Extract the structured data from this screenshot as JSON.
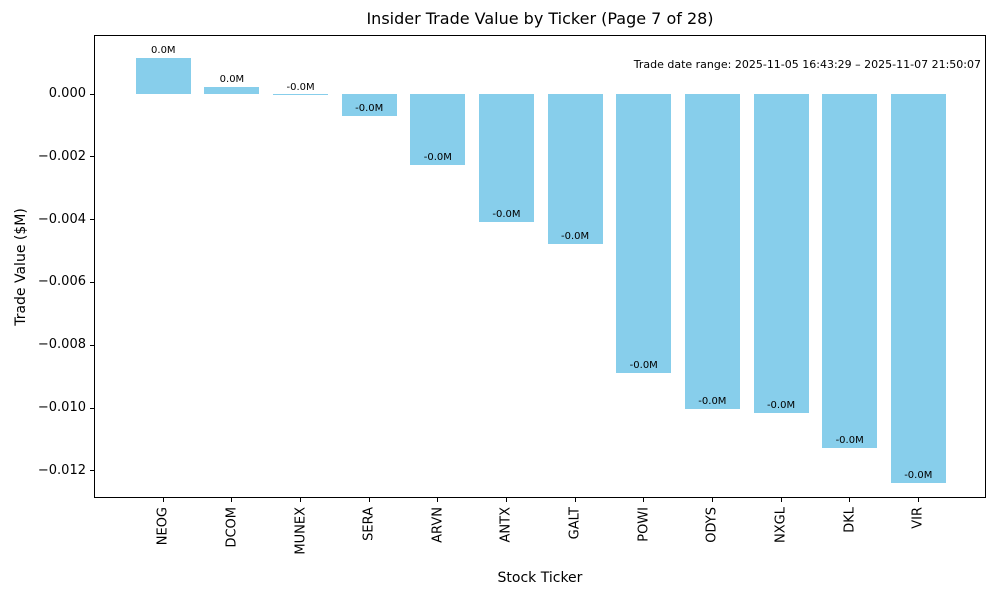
{
  "chart_data": {
    "type": "bar",
    "title": "Insider Trade Value by Ticker (Page 7 of 28)",
    "xlabel": "Stock Ticker",
    "ylabel": "Trade Value ($M)",
    "annotation": "Trade date range: 2025-11-05 16:43:29 – 2025-11-07 21:50:07",
    "categories": [
      "NEOG",
      "DCOM",
      "MUNEX",
      "SERA",
      "ARVN",
      "ANTX",
      "GALT",
      "POWI",
      "ODYS",
      "NXGL",
      "DKL",
      "VIR"
    ],
    "values": [
      0.00114,
      0.00021,
      -3e-05,
      -0.0007,
      -0.00226,
      -0.00407,
      -0.00478,
      -0.00888,
      -0.01003,
      -0.01016,
      -0.01128,
      -0.0124
    ],
    "bar_labels": [
      "0.0M",
      "0.0M",
      "-0.0M",
      "-0.0M",
      "-0.0M",
      "-0.0M",
      "-0.0M",
      "-0.0M",
      "-0.0M",
      "-0.0M",
      "-0.0M",
      "-0.0M"
    ],
    "bar_color": "#87CEEB",
    "ytick_values": [
      0,
      -0.002,
      -0.004,
      -0.006,
      -0.008,
      -0.01,
      -0.012
    ],
    "ytick_labels": [
      "0.000",
      "−0.002",
      "−0.004",
      "−0.006",
      "−0.008",
      "−0.010",
      "−0.012"
    ],
    "ylim": [
      -0.01287,
      0.00188
    ],
    "grid": false,
    "legend": null
  }
}
